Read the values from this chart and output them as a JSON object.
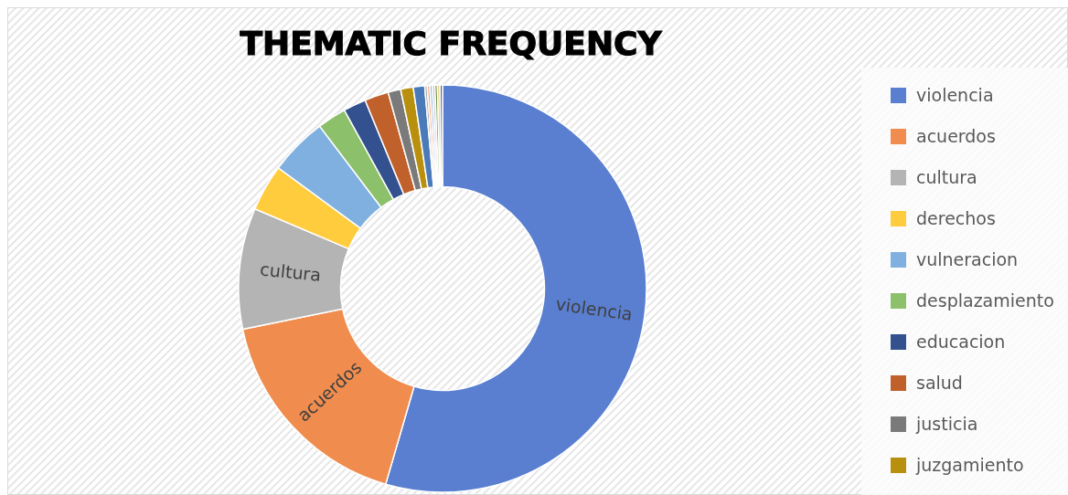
{
  "chart_data": {
    "type": "donut",
    "title": "THEMATIC FREQUENCY",
    "legend": "right",
    "categories": [
      "violencia",
      "acuerdos",
      "cultura",
      "derechos",
      "vulneracion",
      "desplazamiento",
      "educacion",
      "salud",
      "justicia",
      "juzgamiento",
      null,
      null,
      null,
      null,
      null,
      null,
      null,
      null
    ],
    "values": [
      54.5,
      17.3,
      9.6,
      3.7,
      4.6,
      2.3,
      1.8,
      1.9,
      1.0,
      1.0,
      0.9,
      0.2,
      0.2,
      0.2,
      0.2,
      0.2,
      0.2,
      0.2
    ],
    "colors": [
      "#5a7fd0",
      "#f08c4e",
      "#b4b4b4",
      "#ffcc3e",
      "#7fb0e0",
      "#8cc06a",
      "#34518f",
      "#c0602a",
      "#7a7a7a",
      "#b8900e",
      "#4a7ab8",
      "#a8a8a8",
      "#f4a070",
      "#9ab8e8",
      "#c8c8c8",
      "#6a9040",
      "#e8c860",
      "#5a6a8a"
    ]
  }
}
